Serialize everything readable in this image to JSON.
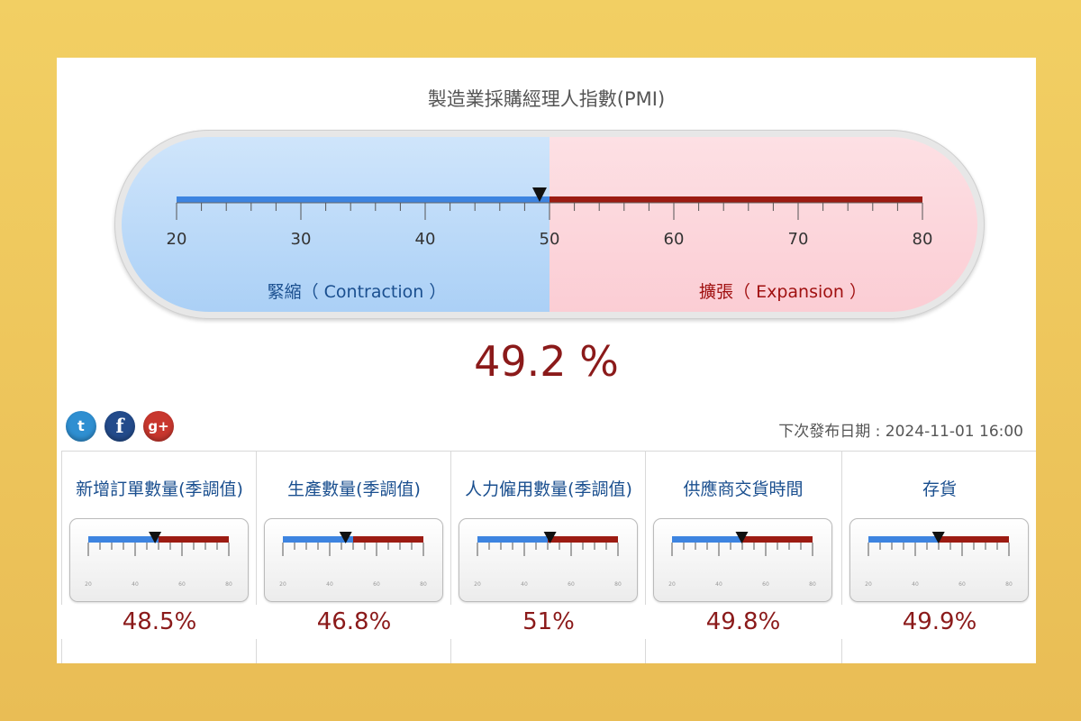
{
  "title": "製造業採購經理人指數(PMI)",
  "gauge": {
    "min": 20,
    "max": 80,
    "threshold": 50,
    "value": 49.2,
    "value_text": "49.2 %",
    "ticks": [
      "20",
      "30",
      "40",
      "50",
      "60",
      "70",
      "80"
    ],
    "contraction_label": "緊縮（ Contraction ）",
    "expansion_label": "擴張（ Expansion ）"
  },
  "colors": {
    "contraction": "#3d84e0",
    "expansion": "#9c1b12",
    "value_text": "#8b1a1a",
    "label_contraction": "#1a4f8f",
    "label_expansion": "#a01010"
  },
  "social": [
    {
      "icon": "twitter-icon",
      "glyph": "t"
    },
    {
      "icon": "facebook-icon",
      "glyph": "f"
    },
    {
      "icon": "google-plus-icon",
      "glyph": "g+"
    }
  ],
  "next_release": "下次發布日期 : 2024-11-01 16:00",
  "components": [
    {
      "label": "新增訂單數量(季調值)",
      "value": 48.5,
      "value_text": "48.5%"
    },
    {
      "label": "生產數量(季調值)",
      "value": 46.8,
      "value_text": "46.8%"
    },
    {
      "label": "人力僱用數量(季調值)",
      "value": 51,
      "value_text": "51%"
    },
    {
      "label": "供應商交貨時間",
      "value": 49.8,
      "value_text": "49.8%"
    },
    {
      "label": "存貨",
      "value": 49.9,
      "value_text": "49.9%"
    }
  ],
  "mini_ticks": [
    "20",
    "40",
    "60",
    "80"
  ]
}
